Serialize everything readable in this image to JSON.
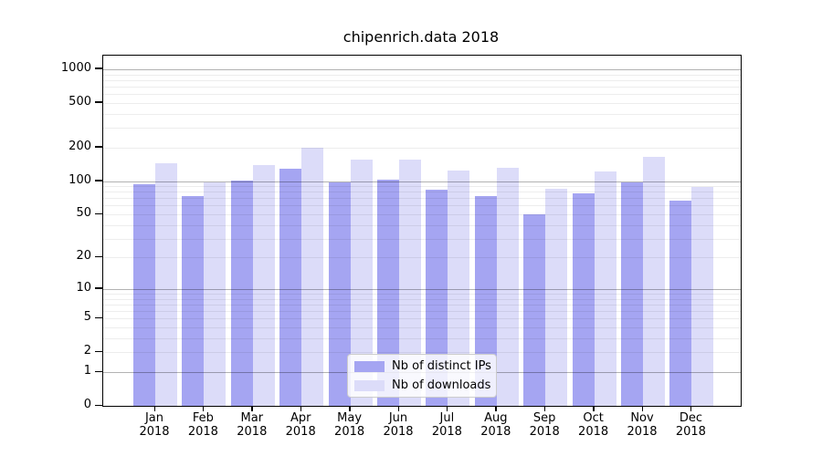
{
  "title": "chipenrich.data 2018",
  "chart_data": {
    "type": "bar",
    "title": "chipenrich.data 2018",
    "y_scale": "log1p",
    "categories": [
      "Jan",
      "Feb",
      "Mar",
      "Apr",
      "May",
      "Jun",
      "Jul",
      "Aug",
      "Sep",
      "Oct",
      "Nov",
      "Dec"
    ],
    "x_tick_year": "2018",
    "series": [
      {
        "name": "Nb of distinct IPs",
        "color": "#a5a5f2",
        "values": [
          94,
          73,
          101,
          130,
          98,
          102,
          83,
          73,
          50,
          77,
          98,
          66
        ]
      },
      {
        "name": "Nb of downloads",
        "color": "#dcdcf9",
        "values": [
          145,
          97,
          140,
          200,
          155,
          156,
          125,
          131,
          85,
          122,
          166,
          89
        ]
      }
    ],
    "y_ticks": [
      1000,
      500,
      200,
      100,
      50,
      20,
      10,
      5,
      2,
      1,
      0
    ],
    "major_gridlines": [
      1,
      10,
      100,
      1000
    ],
    "minor_gridlines": [
      2,
      3,
      4,
      5,
      6,
      7,
      8,
      9,
      20,
      30,
      40,
      50,
      60,
      70,
      80,
      90,
      200,
      300,
      400,
      500,
      600,
      700,
      800,
      900
    ],
    "ylim": [
      0,
      1300
    ],
    "grid": true,
    "legend_position": "lower-center"
  },
  "colors": {
    "ips_bar": "#a5a5f2",
    "downloads_bar": "#dcdcf9",
    "axis": "#000000",
    "legend_border": "#cccccc"
  }
}
